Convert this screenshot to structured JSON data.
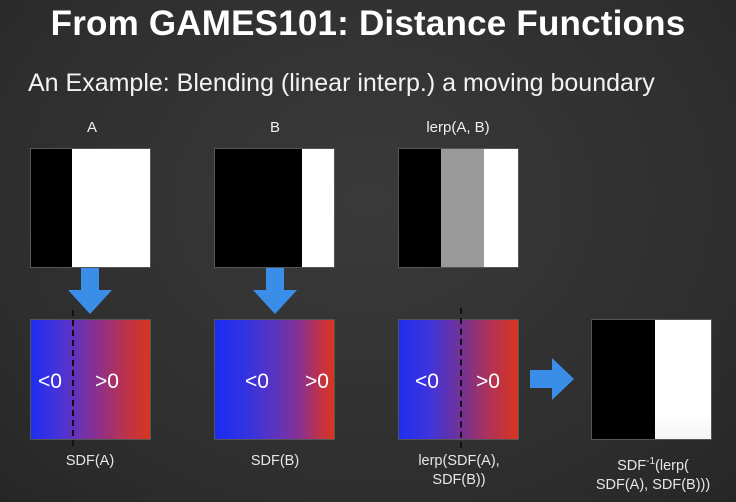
{
  "slide": {
    "title": "From GAMES101: Distance Functions",
    "subtitle": "An Example: Blending (linear interp.) a moving boundary"
  },
  "columns": {
    "a_label": "A",
    "b_label": "B",
    "lerp_label": "lerp(A, B)"
  },
  "sdf": {
    "neg": "<0",
    "pos": ">0"
  },
  "captions": {
    "sdf_a": "SDF(A)",
    "sdf_b": "SDF(B)",
    "lerp_line1": "lerp(SDF(A),",
    "lerp_line2": "SDF(B))",
    "inv_prefix": "SDF",
    "inv_sup": "-1",
    "inv_line1_rest": "(lerp(",
    "inv_line2": "SDF(A), SDF(B)))"
  },
  "colors": {
    "arrow": "#3a8ee8",
    "blue": "#1a2fe6",
    "red": "#d23222",
    "gray": "#9a9a9a"
  }
}
